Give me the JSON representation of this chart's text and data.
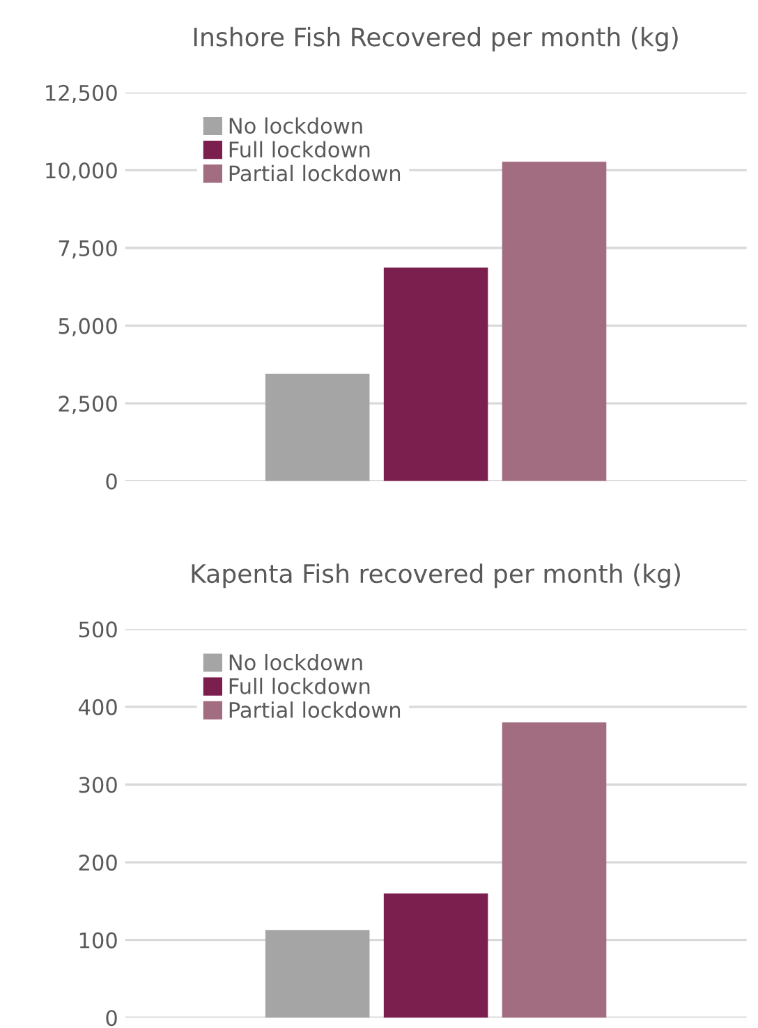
{
  "chart_data": [
    {
      "type": "bar",
      "title": "Inshore Fish Recovered per month (kg)",
      "categories": [
        null
      ],
      "series": [
        {
          "name": "No lockdown",
          "color": "#a5a5a5",
          "values": [
            3450
          ]
        },
        {
          "name": "Full lockdown",
          "color": "#7b1f4f",
          "values": [
            6870
          ]
        },
        {
          "name": "Partial lockdown",
          "color": "#a26d80",
          "values": [
            10270
          ]
        }
      ],
      "ylim": [
        0,
        12500
      ],
      "yticks": [
        {
          "value": 0,
          "label": "0"
        },
        {
          "value": 2500,
          "label": "2,500"
        },
        {
          "value": 5000,
          "label": "5,000"
        },
        {
          "value": 7500,
          "label": "7,500"
        },
        {
          "value": 10000,
          "label": "10,000"
        },
        {
          "value": 12500,
          "label": "12,500"
        }
      ],
      "grid": "y",
      "legend": "top left"
    },
    {
      "type": "bar",
      "title": "Kapenta Fish recovered per month (kg)",
      "categories": [
        null
      ],
      "series": [
        {
          "name": "No lockdown",
          "color": "#a5a5a5",
          "values": [
            113
          ]
        },
        {
          "name": "Full lockdown",
          "color": "#7b1f4f",
          "values": [
            160
          ]
        },
        {
          "name": "Partial lockdown",
          "color": "#a26d80",
          "values": [
            380
          ]
        }
      ],
      "ylim": [
        0,
        500
      ],
      "yticks": [
        0,
        100,
        200,
        300,
        400,
        500
      ],
      "grid": "y",
      "legend": "top left"
    }
  ]
}
